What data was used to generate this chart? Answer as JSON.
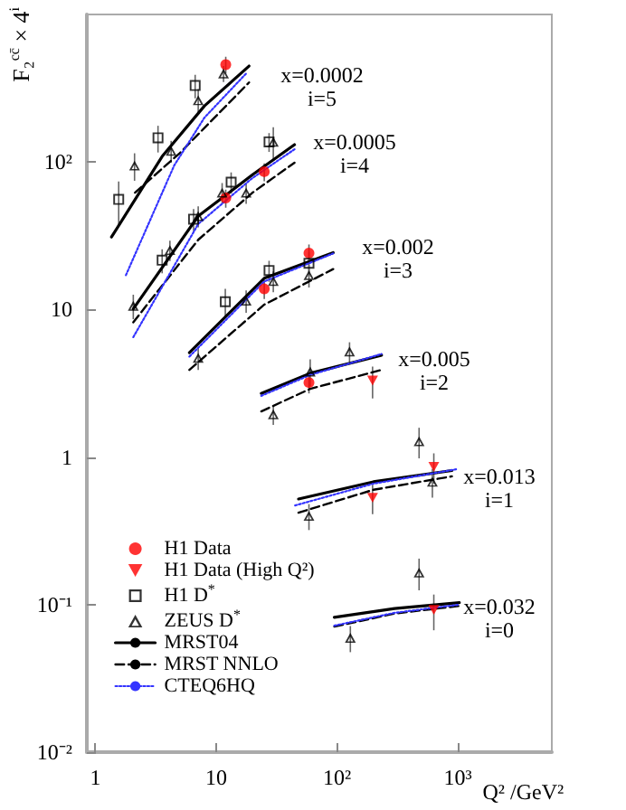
{
  "chart_data": {
    "type": "scatter",
    "xlabel": "Q² /GeV²",
    "ylabel": "F₂$^{cc̄}$ × 4$^{i}$",
    "log": "xy",
    "xlim": [
      0.85,
      6000
    ],
    "ylim": [
      0.01,
      1000
    ],
    "xticks": [
      1,
      10,
      {
        "value": 100,
        "label": "10²"
      },
      {
        "value": 1000,
        "label": "10³"
      }
    ],
    "yticks": [
      {
        "value": 0.01,
        "label": "10⁻²"
      },
      {
        "value": 0.1,
        "label": "10⁻¹"
      },
      1,
      10,
      {
        "value": 100,
        "label": "10²"
      }
    ],
    "legend": "bottom left",
    "annotations": [
      "x=0.0002\ni=5",
      "x=0.0005\ni=4",
      "x=0.002\ni=3",
      "x=0.005\ni=2",
      "x=0.013\ni=1",
      "x=0.032\ni=0"
    ],
    "series": [
      {
        "type": "scatter",
        "name": "H1 Data",
        "color": "#ff0000",
        "marker": "circle",
        "x": [
          12,
          12,
          25,
          25,
          58.6,
          58.6
        ],
        "values": [
          457,
          57,
          86,
          13.8,
          24.1,
          3.2
        ],
        "errors": [
          60,
          8,
          12,
          2,
          3.5,
          0.5
        ]
      },
      {
        "type": "scatter",
        "name": "H1 Data (High Q²)",
        "color": "#ff0000",
        "marker": "triangle",
        "x": [
          197,
          197,
          633,
          633
        ],
        "values": [
          3.3,
          0.53,
          0.86,
          0.092
        ],
        "errors": [
          0.8,
          0.12,
          0.2,
          0.025
        ]
      },
      {
        "type": "scatter",
        "name": "H1 D$^{*}$",
        "color": "#000000",
        "marker": "square",
        "x": [
          1.56,
          3.3,
          6.7,
          3.57,
          6.5,
          13.3,
          27.4,
          11.9,
          27.4,
          58.6
        ],
        "values": [
          55.8,
          146,
          330,
          21.6,
          41,
          73,
          137,
          11.3,
          18.4,
          20.6
        ],
        "errors": [
          18,
          30,
          60,
          4,
          7,
          12,
          20,
          2.5,
          3,
          4
        ]
      },
      {
        "type": "scatter",
        "name": "ZEUS D$^{*}$",
        "color": "#000000",
        "marker": "triangle",
        "x": [
          2.11,
          4.24,
          7.1,
          11.5,
          2.06,
          4.14,
          7.1,
          11.2,
          17.7,
          29.7,
          7.1,
          17.7,
          29.7,
          58.6,
          29.7,
          60,
          127,
          58.6,
          478,
          616,
          129,
          478
        ],
        "values": [
          94.6,
          119,
          262,
          398,
          10.6,
          25.3,
          43,
          62,
          62,
          137,
          4.7,
          11.5,
          15.6,
          17.1,
          1.95,
          3.8,
          5.2,
          0.4,
          1.28,
          0.68,
          0.0596,
          0.165
        ],
        "errors": [
          20,
          20,
          50,
          50,
          2,
          4,
          7,
          10,
          10,
          35,
          0.8,
          2,
          2.5,
          3,
          0.3,
          0.8,
          0.8,
          0.08,
          0.3,
          0.15,
          0.012,
          0.04
        ]
      },
      {
        "type": "line",
        "name": "MRST04",
        "color": "#000000",
        "line_style": "solid",
        "x": [
          1.36,
          3.57,
          8,
          18.7
        ],
        "values": [
          31,
          109,
          240,
          447
        ]
      },
      {
        "type": "line",
        "color": "#000000",
        "line_style": "solid",
        "x": [
          2.06,
          7.1,
          20,
          44.5
        ],
        "values": [
          10.1,
          43,
          82,
          131
        ]
      },
      {
        "type": "line",
        "color": "#000000",
        "line_style": "solid",
        "x": [
          6,
          25,
          93
        ],
        "values": [
          5.1,
          16.3,
          24.3
        ]
      },
      {
        "type": "line",
        "color": "#000000",
        "line_style": "solid",
        "x": [
          23.6,
          60,
          234
        ],
        "values": [
          2.7,
          3.7,
          4.9
        ]
      },
      {
        "type": "line",
        "color": "#000000",
        "line_style": "solid",
        "x": [
          48,
          200,
          894
        ],
        "values": [
          0.52,
          0.68,
          0.81
        ]
      },
      {
        "type": "line",
        "color": "#000000",
        "line_style": "solid",
        "x": [
          95,
          300,
          1030
        ],
        "values": [
          0.082,
          0.094,
          0.103
        ]
      },
      {
        "type": "line",
        "name": "MRST NNLO",
        "color": "#000000",
        "line_style": "dashed",
        "x": [
          2.13,
          5,
          18.7
        ],
        "values": [
          62,
          115,
          346
        ]
      },
      {
        "type": "line",
        "color": "#000000",
        "line_style": "dashed",
        "x": [
          2.06,
          7.1,
          20,
          44.5
        ],
        "values": [
          8.2,
          29.7,
          62,
          99
        ]
      },
      {
        "type": "line",
        "color": "#000000",
        "line_style": "dashed",
        "x": [
          6,
          25,
          93
        ],
        "values": [
          3.9,
          10.8,
          18.8
        ]
      },
      {
        "type": "line",
        "color": "#000000",
        "line_style": "dashed",
        "x": [
          23.6,
          60,
          234
        ],
        "values": [
          2.04,
          2.9,
          3.9
        ]
      },
      {
        "type": "line",
        "color": "#000000",
        "line_style": "dashed",
        "x": [
          48,
          200,
          894
        ],
        "values": [
          0.42,
          0.6,
          0.74
        ]
      },
      {
        "type": "line",
        "color": "#000000",
        "line_style": "dashed",
        "x": [
          95,
          300,
          1030
        ],
        "values": [
          0.071,
          0.087,
          0.098
        ]
      },
      {
        "type": "line",
        "name": "CTEQ6HQ",
        "color": "#3333ff",
        "line_style": "dotted",
        "x": [
          1.79,
          4.5,
          8,
          17.7
        ],
        "values": [
          17.1,
          95,
          200,
          398
        ]
      },
      {
        "type": "line",
        "color": "#3333ff",
        "line_style": "dotted",
        "x": [
          2.06,
          7.1,
          20,
          44.5
        ],
        "values": [
          6.5,
          38,
          78,
          122
        ]
      },
      {
        "type": "line",
        "color": "#3333ff",
        "line_style": "dotted",
        "x": [
          6,
          25,
          93
        ],
        "values": [
          4.8,
          15.5,
          24
        ]
      },
      {
        "type": "line",
        "color": "#3333ff",
        "line_style": "dotted",
        "x": [
          23.6,
          60,
          234
        ],
        "values": [
          2.6,
          3.6,
          5.0
        ]
      },
      {
        "type": "line",
        "color": "#3333ff",
        "line_style": "dotted",
        "x": [
          45,
          200,
          1000
        ],
        "values": [
          0.47,
          0.66,
          0.83
        ]
      },
      {
        "type": "line",
        "color": "#3333ff",
        "line_style": "dotted",
        "x": [
          95,
          300,
          1030
        ],
        "values": [
          0.072,
          0.088,
          0.1
        ]
      }
    ]
  }
}
